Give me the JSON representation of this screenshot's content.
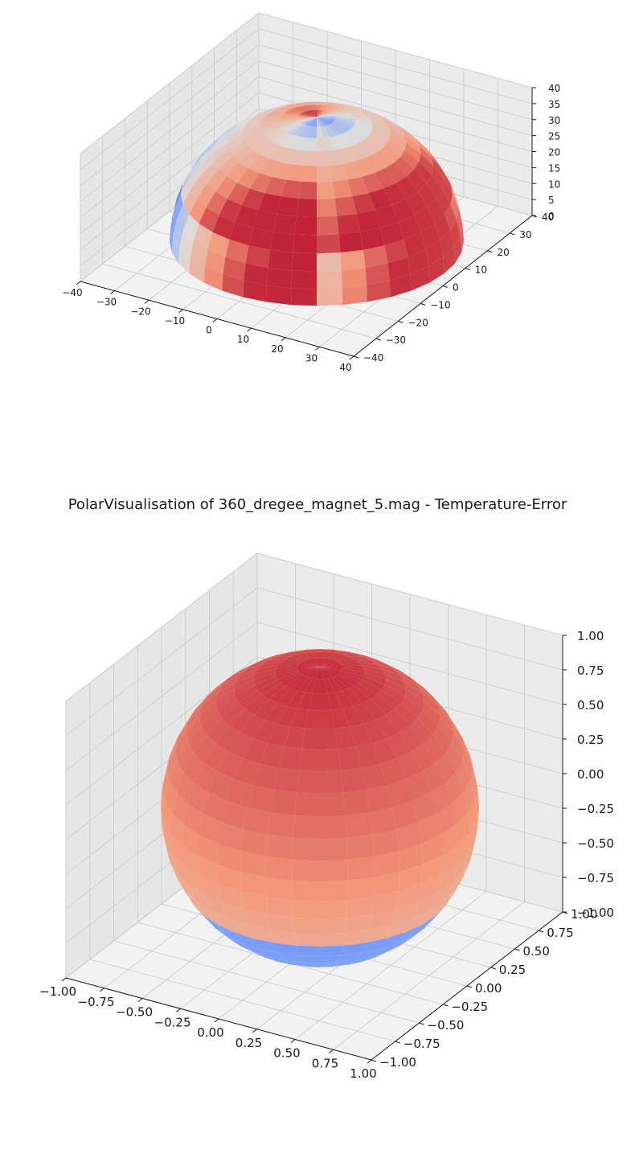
{
  "chart_data": [
    {
      "type": "surface3d",
      "title": "",
      "xlim": [
        -40,
        40
      ],
      "ylim": [
        -40,
        40
      ],
      "zlim": [
        0,
        40
      ],
      "x_ticks": [
        "−40",
        "−30",
        "−20",
        "−10",
        "0",
        "10",
        "20",
        "30",
        "40"
      ],
      "y_ticks": [
        "−40",
        "−30",
        "−20",
        "−10",
        "0",
        "10",
        "20",
        "30",
        "40"
      ],
      "z_ticks": [
        "0",
        "5",
        "10",
        "15",
        "20",
        "25",
        "30",
        "35",
        "40"
      ],
      "shape": "hemisphere",
      "radius": 40,
      "colormap": "coolwarm",
      "grid": true
    },
    {
      "type": "surface3d",
      "title": "PolarVisualisation of 360_dregee_magnet_5.mag - Temperature-Error",
      "xlim": [
        -1,
        1
      ],
      "ylim": [
        -1,
        1
      ],
      "zlim": [
        -1,
        1
      ],
      "x_ticks": [
        "−1.00",
        "−0.75",
        "−0.50",
        "−0.25",
        "0.00",
        "0.25",
        "0.50",
        "0.75",
        "1.00"
      ],
      "y_ticks": [
        "−1.00",
        "−0.75",
        "−0.50",
        "−0.25",
        "0.00",
        "0.25",
        "0.50",
        "0.75",
        "1.00"
      ],
      "z_ticks": [
        "−1.00",
        "−0.75",
        "−0.50",
        "−0.25",
        "0.00",
        "0.25",
        "0.50",
        "0.75",
        "1.00"
      ],
      "shape": "sphere",
      "radius": 1,
      "colormap": "coolwarm",
      "grid": true
    }
  ]
}
